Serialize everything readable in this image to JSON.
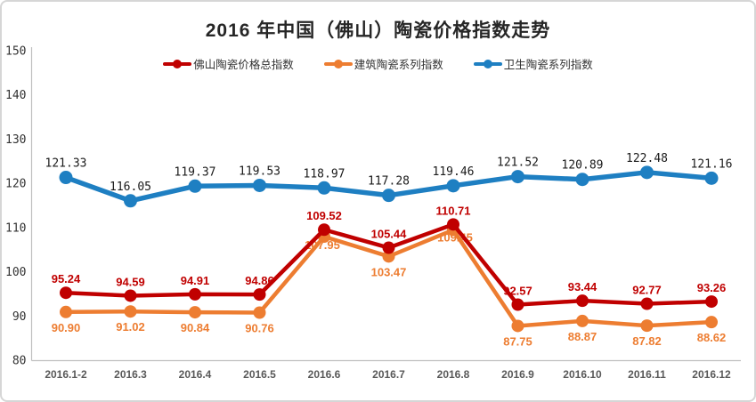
{
  "chart_data": {
    "type": "line",
    "title": "2016 年中国（佛山）陶瓷价格指数走势",
    "categories": [
      "2016.1-2",
      "2016.3",
      "2016.4",
      "2016.5",
      "2016.6",
      "2016.7",
      "2016.8",
      "2016.9",
      "2016.10",
      "2016.11",
      "2016.12"
    ],
    "series": [
      {
        "name": "佛山陶瓷价格总指数",
        "color": "#C00000",
        "label_color": "#C00000",
        "values": [
          95.24,
          94.59,
          94.91,
          94.86,
          109.52,
          105.44,
          110.71,
          92.57,
          93.44,
          92.77,
          93.26
        ],
        "labels": [
          "95.24",
          "94.59",
          "94.91",
          "94.86",
          "109.52",
          "105.44",
          "110.71",
          "92.57",
          "93.44",
          "92.77",
          "93.26"
        ]
      },
      {
        "name": "建筑陶瓷系列指数",
        "color": "#ED7D31",
        "label_color": "#ED7D31",
        "values": [
          90.9,
          91.02,
          90.84,
          90.76,
          107.95,
          103.47,
          109.45,
          87.75,
          88.87,
          87.82,
          88.62
        ],
        "labels": [
          "90.90",
          "91.02",
          "90.84",
          "90.76",
          "107.95",
          "103.47",
          "109.45",
          "87.75",
          "88.87",
          "87.82",
          "88.62"
        ]
      },
      {
        "name": "卫生陶瓷系列指数",
        "color": "#1E7FC2",
        "label_color": "#1A1A1A",
        "values": [
          121.33,
          116.05,
          119.37,
          119.53,
          118.97,
          117.28,
          119.46,
          121.52,
          120.89,
          122.48,
          121.16
        ],
        "labels": [
          "121.33",
          "116.05",
          "119.37",
          "119.53",
          "118.97",
          "117.28",
          "119.46",
          "121.52",
          "120.89",
          "122.48",
          "121.16"
        ]
      }
    ],
    "ylim": [
      80,
      150
    ],
    "yticks": [
      "150",
      "140",
      "130",
      "120",
      "110",
      "100",
      "90",
      "80"
    ],
    "grid": false,
    "legend_position": "top"
  }
}
